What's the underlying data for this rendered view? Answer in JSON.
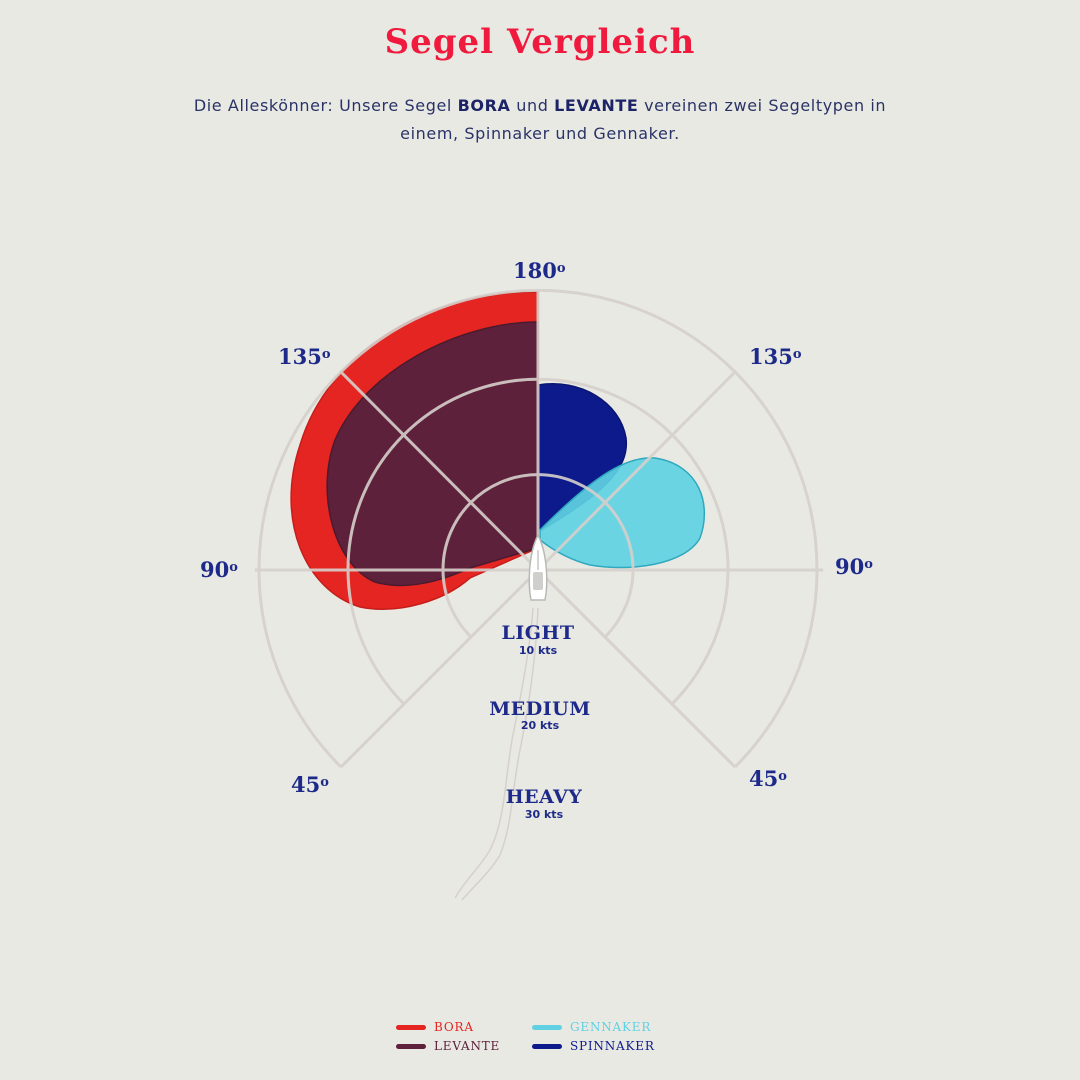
{
  "header": {
    "title": "Segel Vergleich",
    "intro_part1": "Die Alleskönner: Unsere Segel ",
    "intro_bold1": "BORA",
    "intro_part2": " und ",
    "intro_bold2": "LEVANTE",
    "intro_part3": " vereinen zwei Segeltypen in einem, Spinnaker und Gennaker."
  },
  "angles": {
    "top": "180",
    "upper_left": "135",
    "upper_right": "135",
    "left": "90",
    "right": "90",
    "lower_left": "45",
    "lower_right": "45",
    "degree_mark": "o"
  },
  "rings": [
    {
      "name": "LIGHT",
      "speed": "10 kts"
    },
    {
      "name": "MEDIUM",
      "speed": "20 kts"
    },
    {
      "name": "HEAVY",
      "speed": "30 kts"
    }
  ],
  "legend": [
    {
      "label": "BORA",
      "color": "#e52521"
    },
    {
      "label": "GENNAKER",
      "color": "#5fd1e3"
    },
    {
      "label": "LEVANTE",
      "color": "#5e213b"
    },
    {
      "label": "SPINNAKER",
      "color": "#0d1a8c"
    }
  ],
  "colors": {
    "title": "#ef1a3e",
    "text": "#2a3366",
    "axis_label": "#1e2a8a",
    "grid": "#d6d0cc",
    "background": "#e9e9e4"
  }
}
